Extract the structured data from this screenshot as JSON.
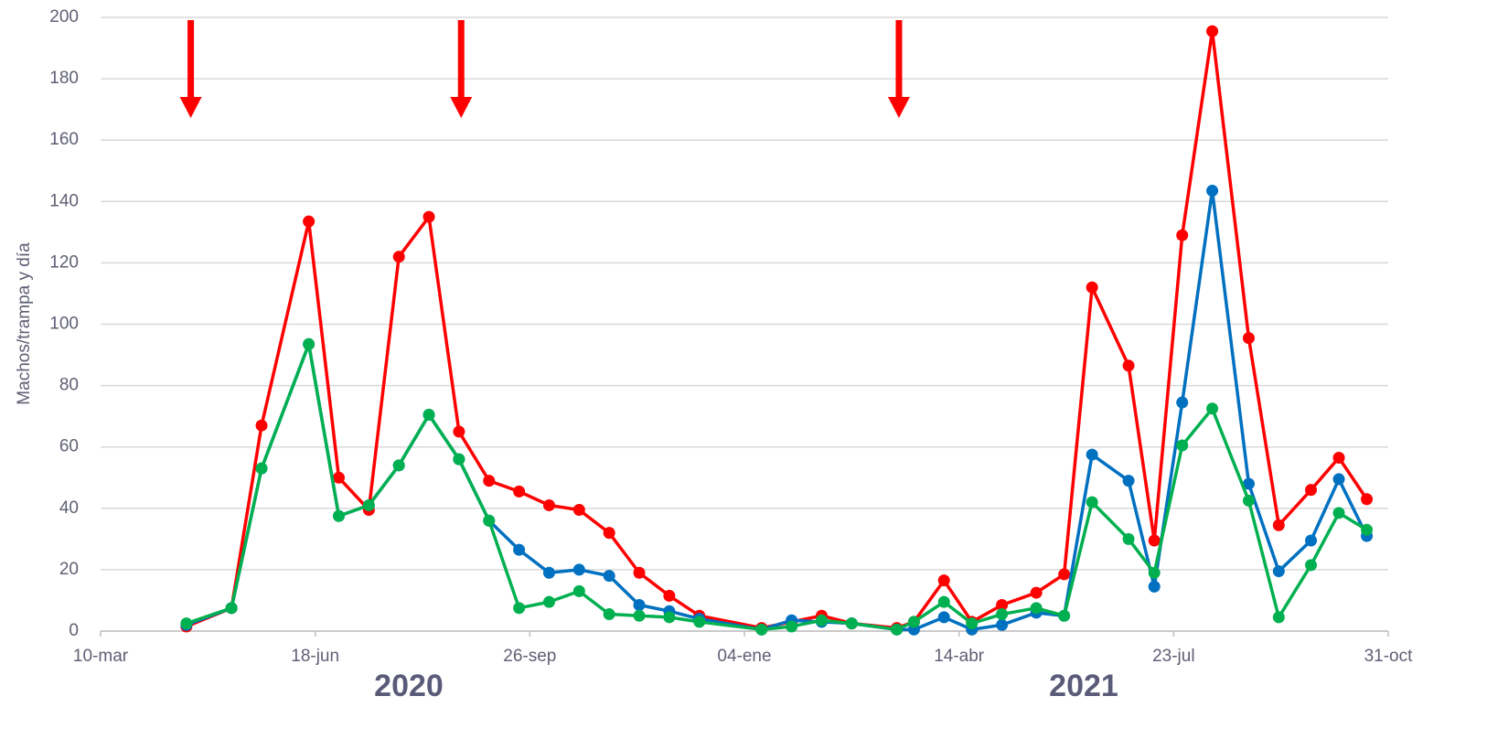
{
  "chart_data": {
    "type": "line",
    "y_label": "Machos/trampa y día",
    "year_labels": [
      "2020",
      "2021"
    ],
    "x": [
      "2020-04-19",
      "2020-05-10",
      "2020-05-24",
      "2020-06-15",
      "2020-06-29",
      "2020-07-13",
      "2020-07-27",
      "2020-08-10",
      "2020-08-24",
      "2020-09-07",
      "2020-09-21",
      "2020-10-05",
      "2020-10-19",
      "2020-11-02",
      "2020-11-16",
      "2020-11-30",
      "2020-12-14",
      "2021-01-12",
      "2021-01-26",
      "2021-02-09",
      "2021-02-23",
      "2021-03-16",
      "2021-03-24",
      "2021-04-07",
      "2021-04-20",
      "2021-05-04",
      "2021-05-20",
      "2021-06-02",
      "2021-06-15",
      "2021-07-02",
      "2021-07-14",
      "2021-07-27",
      "2021-08-10",
      "2021-08-27",
      "2021-09-10",
      "2021-09-25",
      "2021-10-08",
      "2021-10-21"
    ],
    "series": [
      {
        "color": "#ff0000",
        "values": [
          1.5,
          7.5,
          67,
          133.5,
          50,
          39.5,
          122,
          135,
          65,
          49,
          45.5,
          41,
          39.5,
          32,
          19,
          11.5,
          5,
          1,
          3,
          5,
          2.5,
          1,
          3,
          16.5,
          3,
          8.5,
          12.5,
          18.5,
          112,
          86.5,
          29.5,
          129,
          195.5,
          95.5,
          34.5,
          46,
          56.5,
          43
        ]
      },
      {
        "color": "#0070c0",
        "values": [
          2,
          7.5,
          53,
          93.5,
          37.5,
          41,
          54,
          70.5,
          56,
          36,
          26.5,
          19,
          20,
          18,
          8.5,
          6.5,
          4,
          0.5,
          3.5,
          3,
          2.5,
          0.5,
          0.5,
          4.5,
          0.5,
          2,
          6,
          5,
          57.5,
          49,
          14.5,
          74.5,
          143.5,
          48,
          19.5,
          29.5,
          49.5,
          31
        ]
      },
      {
        "color": "#00b050",
        "values": [
          2.5,
          7.5,
          53,
          93.5,
          37.5,
          41,
          54,
          70.5,
          56,
          36,
          7.5,
          9.5,
          13,
          5.5,
          5,
          4.5,
          3,
          0.5,
          1.5,
          3.5,
          2.5,
          0.5,
          3,
          9.5,
          2.5,
          5.5,
          7.5,
          5,
          42,
          30,
          19,
          60.5,
          72.5,
          42.5,
          4.5,
          21.5,
          38.5,
          33
        ]
      }
    ],
    "markers": [
      "2020-04-21",
      "2020-08-25",
      "2021-03-17"
    ],
    "marker_color": "#ff0000",
    "xlim": [
      "2020-03-10",
      "2021-10-31"
    ],
    "xticks": [
      {
        "value": "2020-03-10",
        "label": "10-mar"
      },
      {
        "value": "2020-06-18",
        "label": "18-jun"
      },
      {
        "value": "2020-09-26",
        "label": "26-sep"
      },
      {
        "value": "2021-01-04",
        "label": "04-ene"
      },
      {
        "value": "2021-04-14",
        "label": "14-abr"
      },
      {
        "value": "2021-07-23",
        "label": "23-jul"
      },
      {
        "value": "2021-10-31",
        "label": "31-oct"
      }
    ],
    "ylim": [
      0,
      200
    ],
    "yticks": [
      0,
      20,
      40,
      60,
      80,
      100,
      120,
      140,
      160,
      180,
      200
    ],
    "grid": true
  }
}
